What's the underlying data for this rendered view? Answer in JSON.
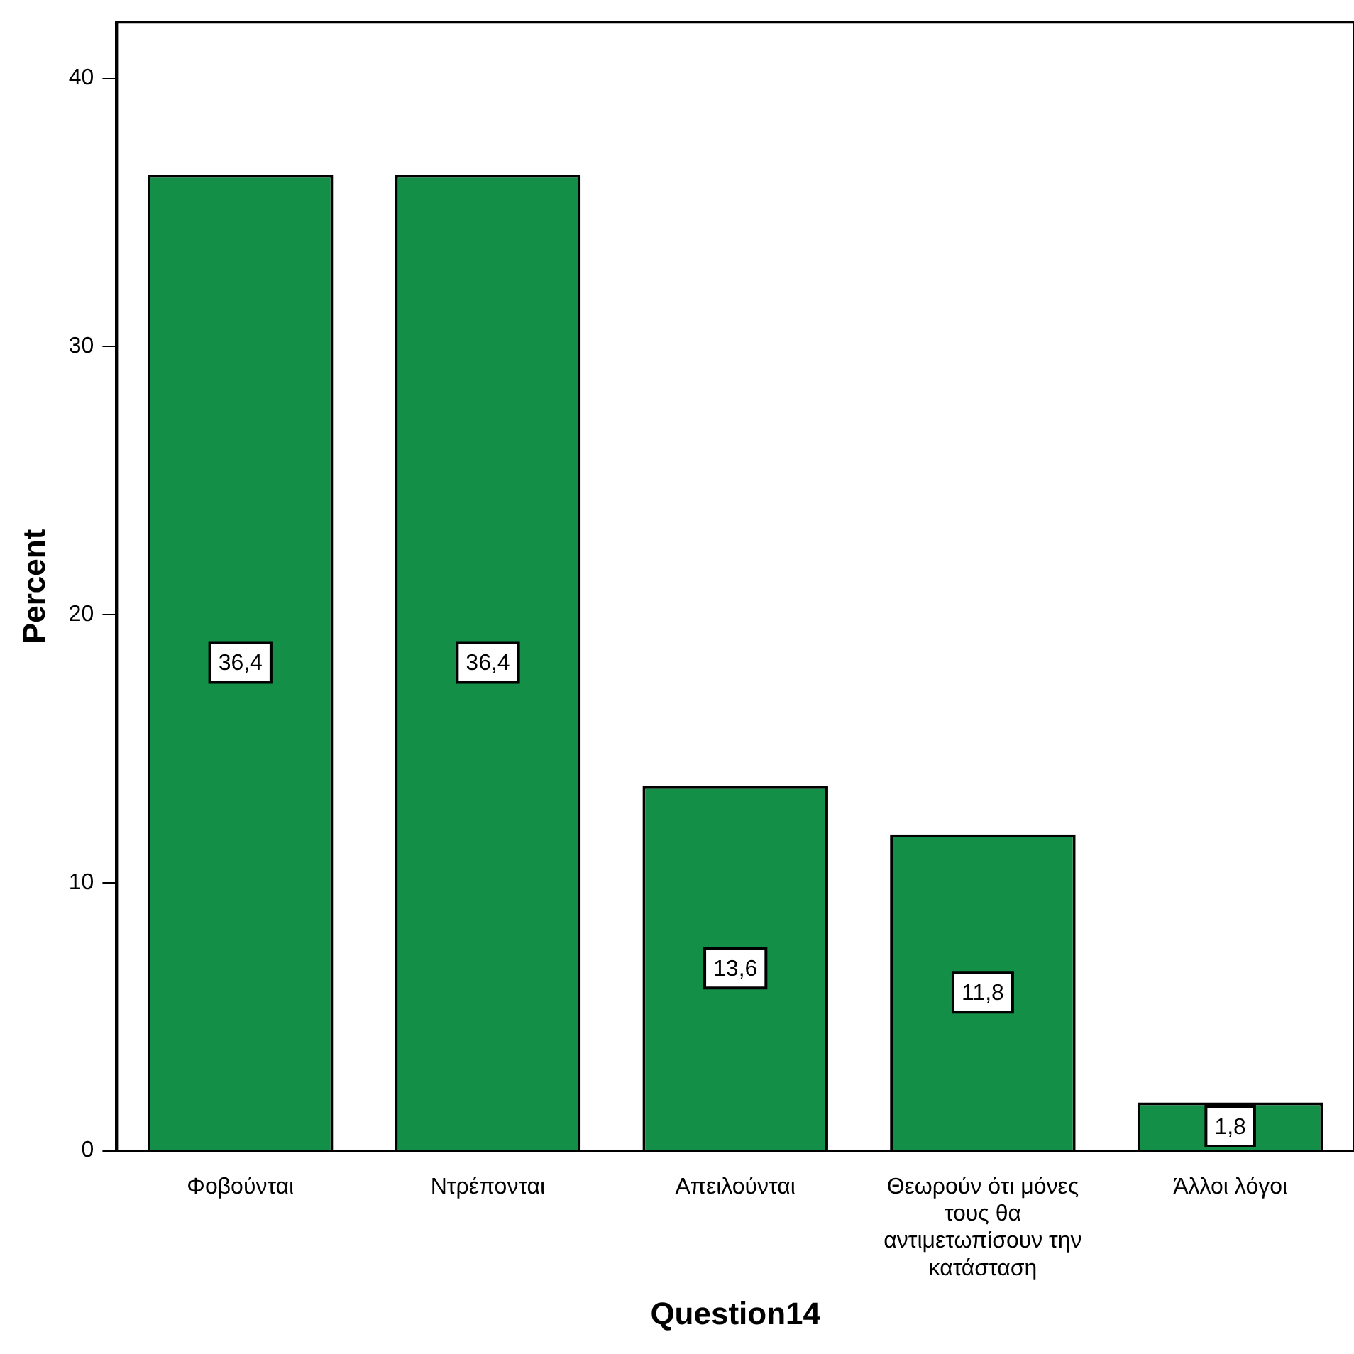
{
  "chart_data": {
    "type": "bar",
    "xlabel": "Question14",
    "ylabel": "Percent",
    "categories": [
      "Φοβούνται",
      "Ντρέπονται",
      "Απειλούνται",
      "Θεωρούν ότι μόνες τους θα αντιμετωπίσουν την κατάσταση",
      "Άλλοι λόγοι"
    ],
    "values": [
      36.4,
      36.4,
      13.6,
      11.8,
      1.8
    ],
    "value_labels": [
      "36,4",
      "36,4",
      "13,6",
      "11,8",
      "1,8"
    ],
    "color": "#138f48",
    "ylim": [
      0,
      42.1
    ],
    "yticks": [
      0,
      10,
      20,
      30,
      40
    ],
    "grid": false,
    "legend": false
  }
}
